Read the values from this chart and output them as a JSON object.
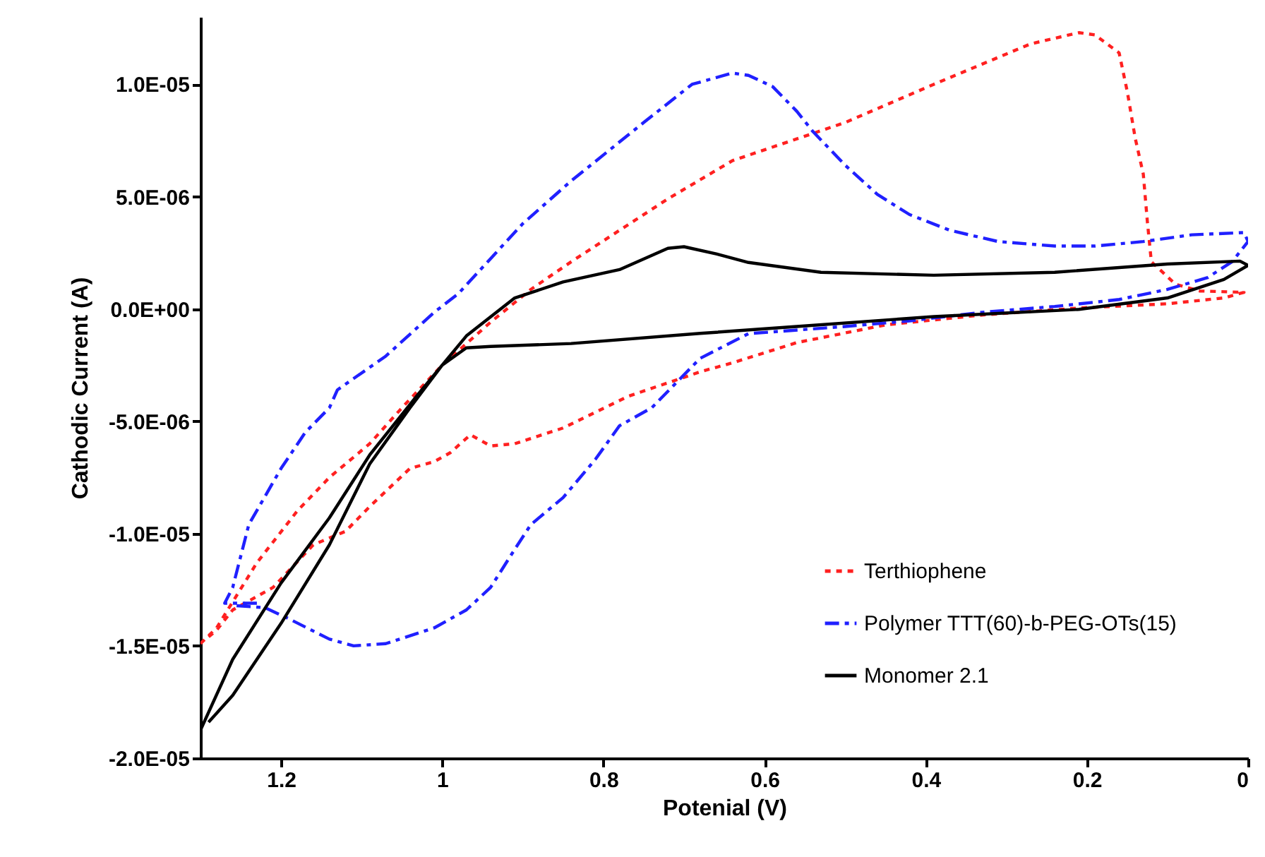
{
  "chart_data": {
    "type": "line",
    "xlabel": "Potenial (V)",
    "ylabel": "Cathodic Current (A)",
    "xlim": [
      1.3,
      0
    ],
    "xticks": [
      1.2,
      1,
      0.8,
      0.6,
      0.4,
      0.2,
      0
    ],
    "ylim": [
      -2e-05,
      1.3e-05
    ],
    "yticks": [
      {
        "value": 1e-05,
        "label": "1.0E-05"
      },
      {
        "value": 5e-06,
        "label": "5.0E-06"
      },
      {
        "value": 0,
        "label": "0.0E+00"
      },
      {
        "value": -5e-06,
        "label": "-5.0E-06"
      },
      {
        "value": -1e-05,
        "label": "-1.0E-05"
      },
      {
        "value": -1.5e-05,
        "label": "-1.5E-05"
      },
      {
        "value": -2e-05,
        "label": "-2.0E-05"
      }
    ],
    "grid": false,
    "legend": "bottom right",
    "series": [
      {
        "name": "Terthiophene",
        "color": "#ff2020",
        "line_style": "dotted",
        "x": [
          1.3,
          1.28,
          1.23,
          1.18,
          1.14,
          1.09,
          1.05,
          1.0,
          0.94,
          0.89,
          0.84,
          0.72,
          0.64,
          0.5,
          0.39,
          0.27,
          0.21,
          0.19,
          0.16,
          0.15,
          0.14,
          0.13,
          0.125,
          0.12,
          0.09,
          0.06,
          0.005,
          0.03,
          0.1,
          0.21,
          0.33,
          0.45,
          0.56,
          0.64,
          0.68,
          0.77,
          0.85,
          0.91,
          0.94,
          0.965,
          0.99,
          1.01,
          1.04,
          1.09,
          1.12,
          1.16,
          1.21,
          1.26,
          1.28,
          1.29
        ],
        "values": [
          -1.49e-05,
          -1.42e-05,
          -1.13e-05,
          -9e-06,
          -7.5e-06,
          -6e-06,
          -4.4e-06,
          -2.5e-06,
          -5.9e-07,
          8.7e-07,
          2.1e-06,
          4.9e-06,
          6.6e-06,
          8.3e-06,
          1e-05,
          1.18e-05,
          1.23e-05,
          1.22e-05,
          1.14e-05,
          9.7e-06,
          7.6e-06,
          6e-06,
          3.9e-06,
          2.1e-06,
          1.1e-06,
          8e-07,
          7.4e-07,
          4.9e-07,
          2.3e-07,
          4e-08,
          -2.7e-07,
          -7.1e-07,
          -1.5e-06,
          -2.4e-06,
          -2.8e-06,
          -3.9e-06,
          -5.3e-06,
          -6e-06,
          -6.1e-06,
          -5.6e-06,
          -6.4e-06,
          -6.8e-06,
          -7.1e-06,
          -8.8e-06,
          -9.9e-06,
          -1.05e-05,
          -1.24e-05,
          -1.34e-05,
          -1.43e-05,
          -1.46e-05
        ]
      },
      {
        "name": "Polymer TTT(60)-b-PEG-OTs(15)",
        "color": "#2020ff",
        "line_style": "dashed",
        "x": [
          1.23,
          1.27,
          1.26,
          1.24,
          1.2,
          1.17,
          1.14,
          1.13,
          1.07,
          1.01,
          0.98,
          0.9,
          0.84,
          0.75,
          0.69,
          0.64,
          0.62,
          0.59,
          0.56,
          0.54,
          0.5,
          0.46,
          0.42,
          0.37,
          0.31,
          0.24,
          0.19,
          0.13,
          0.07,
          0.005,
          0,
          0.02,
          0.05,
          0.1,
          0.16,
          0.24,
          0.33,
          0.42,
          0.5,
          0.62,
          0.68,
          0.74,
          0.78,
          0.81,
          0.85,
          0.89,
          0.91,
          0.94,
          0.97,
          1.01,
          1.07,
          1.11,
          1.14,
          1.19,
          1.22,
          1.26
        ],
        "values": [
          -1.31e-05,
          -1.31e-05,
          -1.24e-05,
          -9.6e-06,
          -7.1e-06,
          -5.5e-06,
          -4.4e-06,
          -3.6e-06,
          -2.1e-06,
          -1.5e-07,
          6.8e-07,
          3.8e-06,
          5.7e-06,
          8.3e-06,
          1e-05,
          1.05e-05,
          1.04e-05,
          9.9e-06,
          8.8e-06,
          7.9e-06,
          6.4e-06,
          5.1e-06,
          4.2e-06,
          3.5e-06,
          3e-06,
          2.8e-06,
          2.8e-06,
          3e-06,
          3.3e-06,
          3.4e-06,
          3e-06,
          2.1e-06,
          1.4e-06,
          8.7e-07,
          4.2e-07,
          1.1e-07,
          -1.5e-07,
          -5.3e-07,
          -7.8e-07,
          -1.1e-06,
          -2.2e-06,
          -4.4e-06,
          -5.2e-06,
          -6.7e-06,
          -8.4e-06,
          -9.6e-06,
          -1.07e-05,
          -1.24e-05,
          -1.34e-05,
          -1.42e-05,
          -1.49e-05,
          -1.5e-05,
          -1.47e-05,
          -1.38e-05,
          -1.33e-05,
          -1.32e-05
        ]
      },
      {
        "name": "Monomer 2.1",
        "color": "#000000",
        "line_style": "solid",
        "x": [
          1.3,
          1.26,
          1.2,
          1.14,
          1.09,
          1.03,
          0.97,
          0.91,
          0.85,
          0.78,
          0.72,
          0.7,
          0.66,
          0.62,
          0.53,
          0.39,
          0.24,
          0.1,
          0.01,
          0,
          0.03,
          0.1,
          0.21,
          0.39,
          0.56,
          0.68,
          0.84,
          0.94,
          0.97,
          1.0,
          1.04,
          1.09,
          1.14,
          1.2,
          1.26,
          1.29
        ],
        "values": [
          -1.875e-05,
          -1.56e-05,
          -1.22e-05,
          -9.3e-06,
          -6.5e-06,
          -3.8e-06,
          -1.2e-06,
          4.9e-07,
          1.2e-06,
          1.75e-06,
          2.7e-06,
          2.77e-06,
          2.45e-06,
          2.07e-06,
          1.63e-06,
          1.5e-06,
          1.63e-06,
          2e-06,
          2.13e-06,
          1.94e-06,
          1.31e-06,
          4.9e-07,
          -2e-08,
          -3.4e-07,
          -7.8e-07,
          -1.09e-06,
          -1.54e-06,
          -1.67e-06,
          -1.73e-06,
          -2.5e-06,
          -4.4e-06,
          -6.9e-06,
          -1.05e-05,
          -1.4e-05,
          -1.72e-05,
          -1.84e-05
        ]
      }
    ]
  }
}
